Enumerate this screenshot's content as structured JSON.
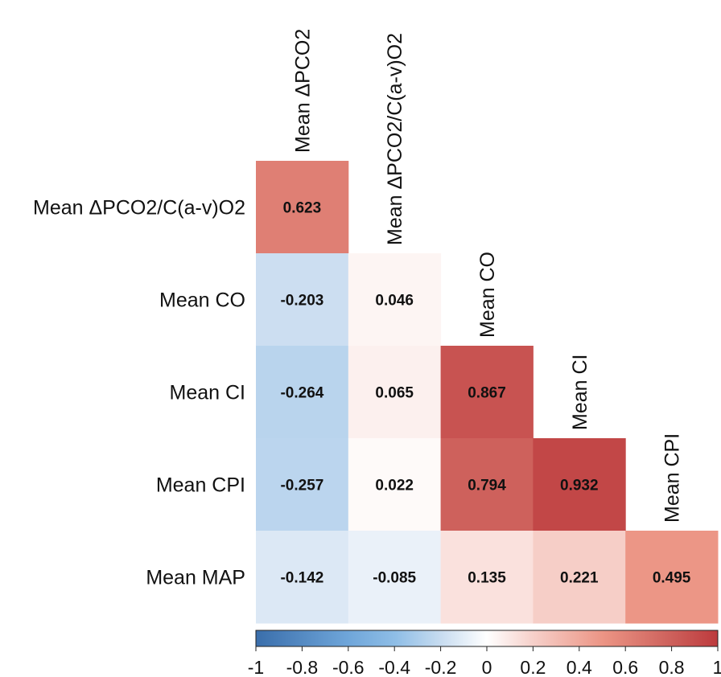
{
  "chart_data": {
    "type": "heatmap",
    "title": "",
    "variables": [
      "Mean ΔPCO2",
      "Mean ΔPCO2/C(a-v)O2",
      "Mean CO",
      "Mean CI",
      "Mean CPI",
      "Mean MAP"
    ],
    "row_labels": [
      "Mean ΔPCO2/C(a-v)O2",
      "Mean CO",
      "Mean CI",
      "Mean CPI",
      "Mean MAP"
    ],
    "col_labels": [
      "Mean ΔPCO2",
      "Mean ΔPCO2/C(a-v)O2",
      "Mean CO",
      "Mean CI",
      "Mean CPI"
    ],
    "values": [
      [
        "0.623"
      ],
      [
        "-0.203",
        "0.046"
      ],
      [
        "-0.264",
        "0.065",
        "0.867"
      ],
      [
        "-0.257",
        "0.022",
        "0.794",
        "0.932"
      ],
      [
        "-0.142",
        "-0.085",
        "0.135",
        "0.221",
        "0.495"
      ]
    ],
    "colorbar": {
      "range": [
        -1,
        1
      ],
      "tick_labels": [
        "-1",
        "-0.8",
        "-0.6",
        "-0.4",
        "-0.2",
        "0",
        "0.2",
        "0.4",
        "0.6",
        "0.8",
        "1"
      ],
      "colors": {
        "neg": "#3a6eab",
        "mid": "#ffffff",
        "pos": "#bd3a3d"
      }
    }
  }
}
